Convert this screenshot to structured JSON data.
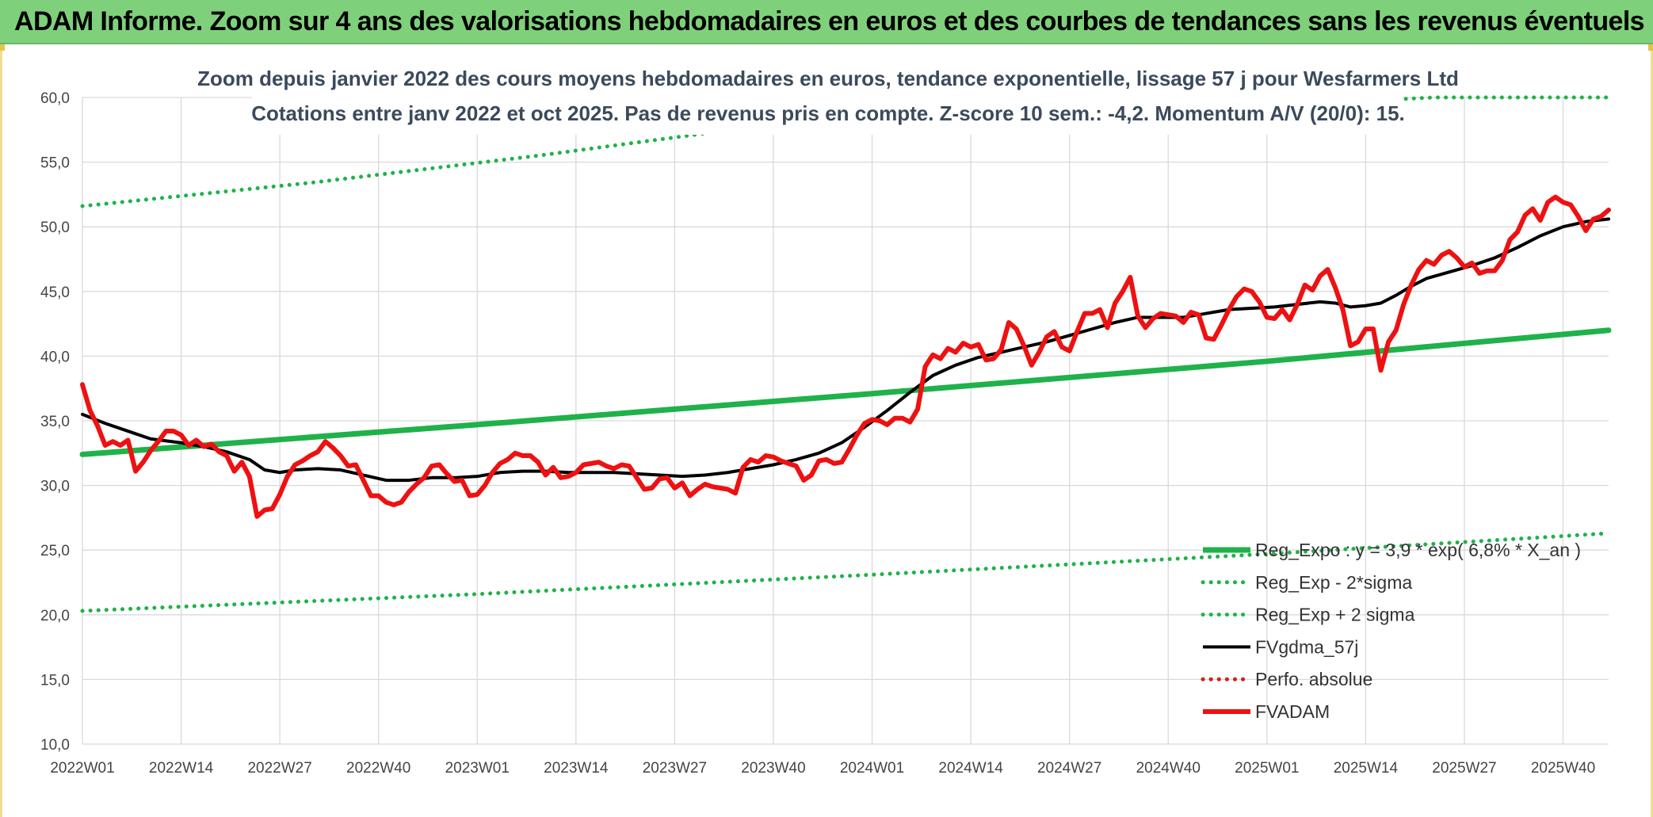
{
  "header": {
    "title": "ADAM Informe. Zoom sur 4 ans des valorisations hebdomadaires en euros et des courbes de tendances sans les revenus éventuels"
  },
  "chart_data": {
    "type": "line",
    "title": "Zoom depuis janvier 2022 des cours moyens hebdomadaires en euros, tendance exponentielle, lissage 57 j pour Wesfarmers Ltd",
    "subtitle": "Cotations entre janv 2022 et oct 2025. Pas de revenus pris en compte. Z-score 10 sem.: -4,2. Momentum A/V (20/0): 15.",
    "xlabel": "",
    "ylabel": "",
    "ylim": [
      10,
      60
    ],
    "yticks": [
      "10,0",
      "15,0",
      "20,0",
      "25,0",
      "30,0",
      "35,0",
      "40,0",
      "45,0",
      "50,0",
      "55,0",
      "60,0"
    ],
    "xticks": [
      "2022W01",
      "2022W14",
      "2022W27",
      "2022W40",
      "2023W01",
      "2023W14",
      "2023W27",
      "2023W40",
      "2024W01",
      "2024W14",
      "2024W27",
      "2024W40",
      "2025W01",
      "2025W14",
      "2025W27",
      "2025W40"
    ],
    "x_tick_weeks": [
      0,
      13,
      26,
      39,
      52,
      65,
      78,
      91,
      104,
      117,
      130,
      143,
      156,
      169,
      182,
      195
    ],
    "week_count": 202,
    "grid": true,
    "legend_position": "bottom-right",
    "series": [
      {
        "name": "Reg_Expo : y = 3,9 * exp( 6,8% *  X_an )",
        "color": "#1fb24a",
        "style": "solid-thick",
        "points": [
          [
            0,
            32.4
          ],
          [
            52,
            34.7
          ],
          [
            104,
            37.1
          ],
          [
            156,
            39.6
          ],
          [
            201,
            42.0
          ]
        ]
      },
      {
        "name": "Reg_Exp - 2*sigma",
        "color": "#1fb24a",
        "style": "dotted",
        "points": [
          [
            0,
            20.3
          ],
          [
            52,
            21.6
          ],
          [
            104,
            23.1
          ],
          [
            156,
            24.7
          ],
          [
            201,
            26.3
          ]
        ]
      },
      {
        "name": "Reg_Exp + 2 sigma",
        "color": "#1fb24a",
        "style": "dotted",
        "points": [
          [
            0,
            51.6
          ],
          [
            30,
            53.4
          ],
          [
            60,
            55.5
          ],
          [
            83,
            57.3
          ],
          [
            178,
            60.0
          ],
          [
            201,
            60.0
          ]
        ]
      },
      {
        "name": "FVgdma_57j",
        "color": "#000000",
        "style": "solid",
        "points": [
          [
            0,
            35.5
          ],
          [
            3,
            34.8
          ],
          [
            6,
            34.2
          ],
          [
            9,
            33.6
          ],
          [
            13,
            33.3
          ],
          [
            16,
            33.0
          ],
          [
            19,
            32.6
          ],
          [
            22,
            32.0
          ],
          [
            24,
            31.2
          ],
          [
            26,
            31.0
          ],
          [
            28,
            31.2
          ],
          [
            31,
            31.3
          ],
          [
            34,
            31.2
          ],
          [
            37,
            30.8
          ],
          [
            40,
            30.4
          ],
          [
            43,
            30.4
          ],
          [
            46,
            30.6
          ],
          [
            49,
            30.6
          ],
          [
            52,
            30.7
          ],
          [
            55,
            31.0
          ],
          [
            58,
            31.1
          ],
          [
            61,
            31.1
          ],
          [
            64,
            31.0
          ],
          [
            67,
            31.0
          ],
          [
            70,
            31.0
          ],
          [
            73,
            30.9
          ],
          [
            76,
            30.8
          ],
          [
            79,
            30.7
          ],
          [
            82,
            30.8
          ],
          [
            85,
            31.0
          ],
          [
            88,
            31.3
          ],
          [
            91,
            31.6
          ],
          [
            94,
            32.0
          ],
          [
            97,
            32.5
          ],
          [
            100,
            33.3
          ],
          [
            103,
            34.5
          ],
          [
            106,
            35.8
          ],
          [
            109,
            37.2
          ],
          [
            112,
            38.5
          ],
          [
            115,
            39.3
          ],
          [
            118,
            39.9
          ],
          [
            121,
            40.3
          ],
          [
            124,
            40.7
          ],
          [
            127,
            41.1
          ],
          [
            130,
            41.6
          ],
          [
            133,
            42.1
          ],
          [
            136,
            42.6
          ],
          [
            139,
            43.0
          ],
          [
            142,
            43.0
          ],
          [
            145,
            43.0
          ],
          [
            148,
            43.3
          ],
          [
            151,
            43.6
          ],
          [
            154,
            43.7
          ],
          [
            157,
            43.8
          ],
          [
            160,
            44.0
          ],
          [
            163,
            44.2
          ],
          [
            165,
            44.1
          ],
          [
            167,
            43.8
          ],
          [
            169,
            43.9
          ],
          [
            171,
            44.1
          ],
          [
            173,
            44.7
          ],
          [
            175,
            45.4
          ],
          [
            177,
            46.0
          ],
          [
            180,
            46.5
          ],
          [
            183,
            47.0
          ],
          [
            186,
            47.6
          ],
          [
            189,
            48.4
          ],
          [
            192,
            49.3
          ],
          [
            195,
            50.0
          ],
          [
            198,
            50.4
          ],
          [
            201,
            50.6
          ]
        ]
      },
      {
        "name": "Perfo. absolue",
        "color": "#d91e18",
        "style": "dotted",
        "points": []
      },
      {
        "name": "FVADAM",
        "color": "#ee1111",
        "style": "solid-thick",
        "points": [
          [
            0,
            37.8
          ],
          [
            1,
            35.8
          ],
          [
            2,
            34.6
          ],
          [
            3,
            33.1
          ],
          [
            4,
            33.4
          ],
          [
            5,
            33.1
          ],
          [
            6,
            33.5
          ],
          [
            7,
            31.1
          ],
          [
            8,
            31.8
          ],
          [
            9,
            32.7
          ],
          [
            10,
            33.4
          ],
          [
            11,
            34.2
          ],
          [
            12,
            34.2
          ],
          [
            13,
            33.9
          ],
          [
            14,
            33.1
          ],
          [
            15,
            33.5
          ],
          [
            16,
            33.0
          ],
          [
            17,
            33.2
          ],
          [
            18,
            32.6
          ],
          [
            19,
            32.3
          ],
          [
            20,
            31.1
          ],
          [
            21,
            31.8
          ],
          [
            22,
            30.7
          ],
          [
            23,
            27.6
          ],
          [
            24,
            28.1
          ],
          [
            25,
            28.2
          ],
          [
            26,
            29.3
          ],
          [
            27,
            30.7
          ],
          [
            28,
            31.6
          ],
          [
            29,
            31.9
          ],
          [
            30,
            32.3
          ],
          [
            31,
            32.6
          ],
          [
            32,
            33.4
          ],
          [
            33,
            32.9
          ],
          [
            34,
            32.3
          ],
          [
            35,
            31.5
          ],
          [
            36,
            31.6
          ],
          [
            37,
            30.4
          ],
          [
            38,
            29.2
          ],
          [
            39,
            29.2
          ],
          [
            40,
            28.7
          ],
          [
            41,
            28.5
          ],
          [
            42,
            28.7
          ],
          [
            43,
            29.5
          ],
          [
            44,
            30.1
          ],
          [
            45,
            30.6
          ],
          [
            46,
            31.5
          ],
          [
            47,
            31.6
          ],
          [
            48,
            30.9
          ],
          [
            49,
            30.3
          ],
          [
            50,
            30.4
          ],
          [
            51,
            29.2
          ],
          [
            52,
            29.3
          ],
          [
            53,
            30.0
          ],
          [
            54,
            31.0
          ],
          [
            55,
            31.7
          ],
          [
            56,
            32.0
          ],
          [
            57,
            32.5
          ],
          [
            58,
            32.3
          ],
          [
            59,
            32.3
          ],
          [
            60,
            31.8
          ],
          [
            61,
            30.8
          ],
          [
            62,
            31.4
          ],
          [
            63,
            30.6
          ],
          [
            64,
            30.7
          ],
          [
            65,
            31.0
          ],
          [
            66,
            31.6
          ],
          [
            67,
            31.7
          ],
          [
            68,
            31.8
          ],
          [
            69,
            31.5
          ],
          [
            70,
            31.3
          ],
          [
            71,
            31.6
          ],
          [
            72,
            31.5
          ],
          [
            73,
            30.6
          ],
          [
            74,
            29.7
          ],
          [
            75,
            29.8
          ],
          [
            76,
            30.5
          ],
          [
            77,
            30.6
          ],
          [
            78,
            29.8
          ],
          [
            79,
            30.2
          ],
          [
            80,
            29.2
          ],
          [
            81,
            29.7
          ],
          [
            82,
            30.1
          ],
          [
            83,
            29.9
          ],
          [
            84,
            29.8
          ],
          [
            85,
            29.7
          ],
          [
            86,
            29.4
          ],
          [
            87,
            31.4
          ],
          [
            88,
            32.0
          ],
          [
            89,
            31.8
          ],
          [
            90,
            32.3
          ],
          [
            91,
            32.2
          ],
          [
            92,
            31.9
          ],
          [
            93,
            31.7
          ],
          [
            94,
            31.5
          ],
          [
            95,
            30.4
          ],
          [
            96,
            30.8
          ],
          [
            97,
            31.9
          ],
          [
            98,
            32.0
          ],
          [
            99,
            31.7
          ],
          [
            100,
            31.8
          ],
          [
            101,
            32.8
          ],
          [
            102,
            33.9
          ],
          [
            103,
            34.8
          ],
          [
            104,
            35.1
          ],
          [
            105,
            35.0
          ],
          [
            106,
            34.7
          ],
          [
            107,
            35.2
          ],
          [
            108,
            35.2
          ],
          [
            109,
            34.9
          ],
          [
            110,
            35.9
          ],
          [
            111,
            39.2
          ],
          [
            112,
            40.1
          ],
          [
            113,
            39.8
          ],
          [
            114,
            40.6
          ],
          [
            115,
            40.3
          ],
          [
            116,
            41.0
          ],
          [
            117,
            40.7
          ],
          [
            118,
            40.9
          ],
          [
            119,
            39.7
          ],
          [
            120,
            39.8
          ],
          [
            121,
            40.5
          ],
          [
            122,
            42.6
          ],
          [
            123,
            42.1
          ],
          [
            124,
            40.8
          ],
          [
            125,
            39.3
          ],
          [
            126,
            40.3
          ],
          [
            127,
            41.5
          ],
          [
            128,
            41.9
          ],
          [
            129,
            40.7
          ],
          [
            130,
            40.4
          ],
          [
            131,
            41.9
          ],
          [
            132,
            43.3
          ],
          [
            133,
            43.3
          ],
          [
            134,
            43.6
          ],
          [
            135,
            42.2
          ],
          [
            136,
            44.1
          ],
          [
            137,
            45.0
          ],
          [
            138,
            46.1
          ],
          [
            139,
            43.1
          ],
          [
            140,
            42.2
          ],
          [
            141,
            42.9
          ],
          [
            142,
            43.3
          ],
          [
            143,
            43.2
          ],
          [
            144,
            43.1
          ],
          [
            145,
            42.6
          ],
          [
            146,
            43.4
          ],
          [
            147,
            43.2
          ],
          [
            148,
            41.4
          ],
          [
            149,
            41.3
          ],
          [
            150,
            42.4
          ],
          [
            151,
            43.6
          ],
          [
            152,
            44.6
          ],
          [
            153,
            45.2
          ],
          [
            154,
            45.0
          ],
          [
            155,
            44.2
          ],
          [
            156,
            43.0
          ],
          [
            157,
            42.9
          ],
          [
            158,
            43.6
          ],
          [
            159,
            42.8
          ],
          [
            160,
            44.0
          ],
          [
            161,
            45.5
          ],
          [
            162,
            45.1
          ],
          [
            163,
            46.2
          ],
          [
            164,
            46.7
          ],
          [
            165,
            45.3
          ],
          [
            166,
            43.6
          ],
          [
            167,
            40.8
          ],
          [
            168,
            41.1
          ],
          [
            169,
            42.1
          ],
          [
            170,
            42.1
          ],
          [
            171,
            38.9
          ],
          [
            172,
            41.1
          ],
          [
            173,
            42.0
          ],
          [
            174,
            44.0
          ],
          [
            175,
            45.5
          ],
          [
            176,
            46.7
          ],
          [
            177,
            47.4
          ],
          [
            178,
            47.1
          ],
          [
            179,
            47.8
          ],
          [
            180,
            48.1
          ],
          [
            181,
            47.6
          ],
          [
            182,
            46.9
          ],
          [
            183,
            47.2
          ],
          [
            184,
            46.4
          ],
          [
            185,
            46.6
          ],
          [
            186,
            46.6
          ],
          [
            187,
            47.4
          ],
          [
            188,
            49.0
          ],
          [
            189,
            49.6
          ],
          [
            190,
            50.9
          ],
          [
            191,
            51.4
          ],
          [
            192,
            50.5
          ],
          [
            193,
            51.9
          ],
          [
            194,
            52.3
          ],
          [
            195,
            51.9
          ],
          [
            196,
            51.7
          ],
          [
            197,
            50.8
          ],
          [
            198,
            49.7
          ],
          [
            199,
            50.6
          ],
          [
            200,
            50.8
          ],
          [
            201,
            51.3
          ]
        ]
      }
    ]
  }
}
